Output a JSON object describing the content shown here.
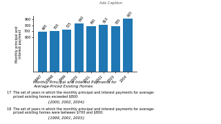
{
  "chart_data": {
    "type": "bar",
    "title": "Monthly Principal and Interest Payments for\nAverage-Priced Existing Homes",
    "ylabel": "Monthly principal and\ninterest payment",
    "categories": [
      "1997",
      "1998",
      "1999",
      "2000",
      "2001",
      "2002",
      "2003",
      "2004"
    ],
    "values": [
      695,
      700,
      725,
      840,
      790,
      810,
      785,
      920
    ],
    "ylim": [
      0,
      960
    ],
    "yticks": [
      600,
      700,
      800,
      900
    ],
    "data_labels": true,
    "annotations": [
      "Ads Caption",
      "17  The set of years in which the monthly principal and interest payments for average-\n      priced existing homes exceeded $800:",
      "{2000, 2002, 2004}",
      "18  The set of years in which the monthly principal and interest payments for average-\n      priced existing homes were between $700 and $800:",
      "{1999, 2001, 2003}"
    ]
  }
}
